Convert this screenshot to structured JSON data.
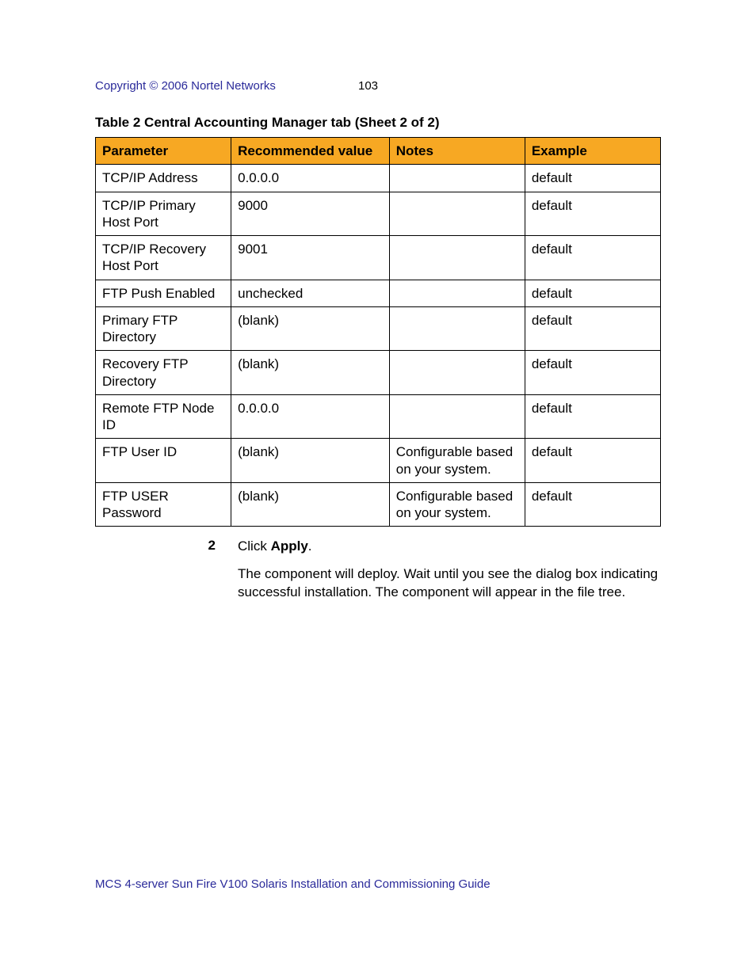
{
  "header": {
    "copyright": "Copyright © 2006 Nortel Networks",
    "page_number": "103",
    "copyright_color": "#2a2a9a"
  },
  "table": {
    "caption": "Table 2  Central Accounting Manager tab (Sheet 2 of 2)",
    "header_bg_color": "#f7a823",
    "border_color": "#000000",
    "col_widths": [
      "24%",
      "28%",
      "24%",
      "24%"
    ],
    "columns": [
      "Parameter",
      "Recommended value",
      "Notes",
      "Example"
    ],
    "rows": [
      [
        "TCP/IP Address",
        "0.0.0.0",
        "",
        "default"
      ],
      [
        "TCP/IP Primary Host Port",
        "9000",
        "",
        "default"
      ],
      [
        "TCP/IP Recovery Host Port",
        "9001",
        "",
        "default"
      ],
      [
        "FTP Push Enabled",
        "unchecked",
        "",
        "default"
      ],
      [
        "Primary FTP Directory",
        "(blank)",
        "",
        "default"
      ],
      [
        "Recovery FTP Directory",
        "(blank)",
        "",
        "default"
      ],
      [
        "Remote FTP Node ID",
        "0.0.0.0",
        "",
        "default"
      ],
      [
        "FTP User ID",
        "(blank)",
        "Configurable based on your system.",
        "default"
      ],
      [
        "FTP USER Password",
        "(blank)",
        "Configurable based on your system.",
        "default"
      ]
    ]
  },
  "step": {
    "number": "2",
    "line1_pre": "Click ",
    "line1_bold": "Apply",
    "line1_post": ".",
    "para2": "The component will deploy. Wait until you see the dialog box indicating successful installation. The component will appear in the file tree."
  },
  "footer": {
    "text": "MCS 4-server Sun Fire V100 Solaris Installation and Commissioning Guide",
    "color": "#2a2a9a"
  }
}
